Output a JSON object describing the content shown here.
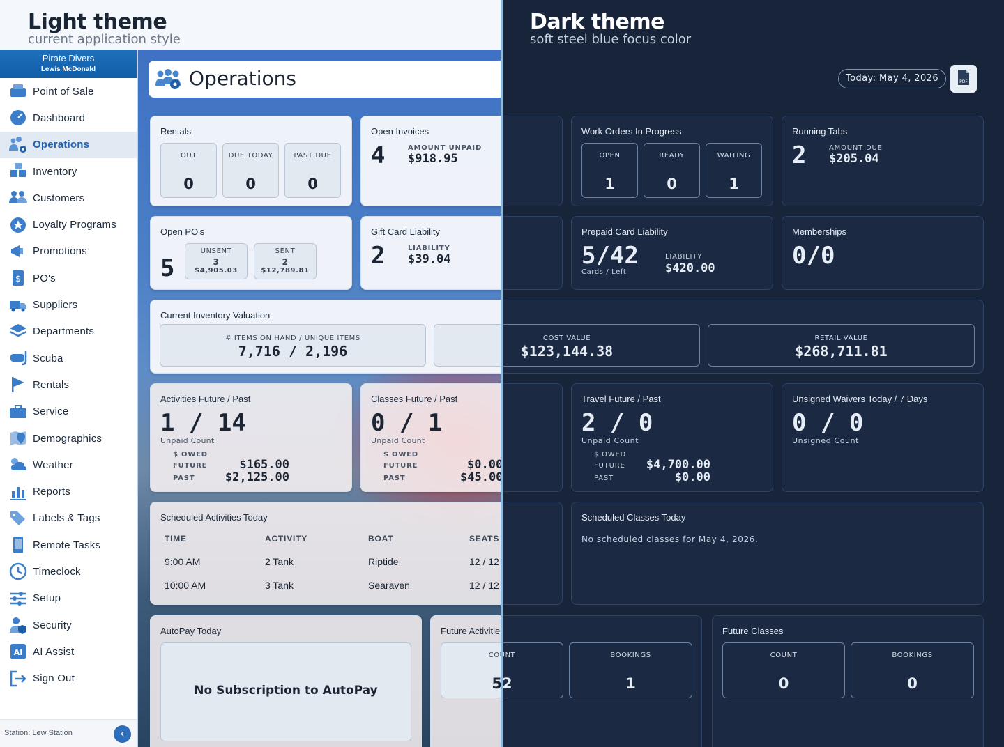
{
  "themes": {
    "light": {
      "title": "Light theme",
      "subtitle": "current application style"
    },
    "dark": {
      "title": "Dark theme",
      "subtitle": "soft steel blue focus color"
    }
  },
  "brand": {
    "company": "Pirate Divers",
    "user": "Lewis McDonald"
  },
  "sidebar": {
    "items": [
      {
        "label": "Point of Sale",
        "icon": "register-icon"
      },
      {
        "label": "Dashboard",
        "icon": "speedometer-icon"
      },
      {
        "label": "Operations",
        "icon": "people-gear-icon",
        "active": true
      },
      {
        "label": "Inventory",
        "icon": "boxes-icon"
      },
      {
        "label": "Customers",
        "icon": "users-icon"
      },
      {
        "label": "Loyalty Programs",
        "icon": "star-badge-icon"
      },
      {
        "label": "Promotions",
        "icon": "megaphone-icon"
      },
      {
        "label": "PO's",
        "icon": "dollar-doc-icon"
      },
      {
        "label": "Suppliers",
        "icon": "truck-icon"
      },
      {
        "label": "Departments",
        "icon": "layers-icon"
      },
      {
        "label": "Scuba",
        "icon": "mask-icon"
      },
      {
        "label": "Rentals",
        "icon": "flag-icon"
      },
      {
        "label": "Service",
        "icon": "toolbox-icon"
      },
      {
        "label": "Demographics",
        "icon": "map-pin-icon"
      },
      {
        "label": "Weather",
        "icon": "cloud-sun-icon"
      },
      {
        "label": "Reports",
        "icon": "bar-chart-icon"
      },
      {
        "label": "Labels & Tags",
        "icon": "tags-icon"
      },
      {
        "label": "Remote Tasks",
        "icon": "phone-icon"
      },
      {
        "label": "Timeclock",
        "icon": "clock-icon"
      },
      {
        "label": "Setup",
        "icon": "sliders-icon"
      },
      {
        "label": "Security",
        "icon": "user-shield-icon"
      },
      {
        "label": "AI Assist",
        "icon": "ai-icon"
      },
      {
        "label": "Sign Out",
        "icon": "sign-out-icon"
      }
    ],
    "station": "Station: Lew Station",
    "collapse_glyph": "‹"
  },
  "header": {
    "title": "Operations",
    "today": "Today: May 4, 2026",
    "pdf_label": "PDF"
  },
  "rentals": {
    "title": "Rentals",
    "boxes": [
      {
        "label": "OUT",
        "value": "0"
      },
      {
        "label": "DUE TODAY",
        "value": "0"
      },
      {
        "label": "PAST DUE",
        "value": "0"
      }
    ]
  },
  "open_invoices": {
    "title": "Open Invoices",
    "count": "4",
    "amount_label": "AMOUNT UNPAID",
    "amount": "$918.95"
  },
  "work_orders": {
    "title": "Work Orders In Progress",
    "boxes": [
      {
        "label": "OPEN",
        "value": "1"
      },
      {
        "label": "READY",
        "value": "0"
      },
      {
        "label": "WAITING",
        "value": "1"
      }
    ]
  },
  "running_tabs": {
    "title": "Running Tabs",
    "count": "2",
    "amount_label": "AMOUNT DUE",
    "amount": "$205.04"
  },
  "open_pos": {
    "title": "Open PO's",
    "count": "5",
    "unsent": {
      "label": "UNSENT",
      "count": "3",
      "amount": "$4,905.03"
    },
    "sent": {
      "label": "SENT",
      "count": "2",
      "amount": "$12,789.81"
    }
  },
  "gift_card": {
    "title": "Gift Card Liability",
    "count": "2",
    "label": "LIABILITY",
    "amount": "$39.04"
  },
  "prepaid_card": {
    "title": "Prepaid Card Liability",
    "ratio": "5/42",
    "sub": "Cards / Left",
    "label": "LIABILITY",
    "amount": "$420.00"
  },
  "memberships": {
    "title": "Memberships",
    "value": "0/0"
  },
  "inventory_valuation": {
    "title": "Current Inventory Valuation",
    "items_label": "# ITEMS ON HAND / UNIQUE ITEMS",
    "items_value": "7,716 / 2,196",
    "cost_label": "COST VALUE",
    "cost_value": "$123,144.38",
    "retail_label": "RETAIL VALUE",
    "retail_value": "$268,711.81"
  },
  "activities": {
    "title": "Activities Future / Past",
    "ratio": "1 / 14",
    "sub": "Unpaid Count",
    "owed_label": "$ OWED",
    "future_label": "FUTURE",
    "future": "$165.00",
    "past_label": "PAST",
    "past": "$2,125.00"
  },
  "classes": {
    "title": "Classes Future / Past",
    "ratio": "0 / 1",
    "sub": "Unpaid Count",
    "owed_label": "$ OWED",
    "future_label": "FUTURE",
    "future": "$0.00",
    "past_label": "PAST",
    "past": "$45.00"
  },
  "travel": {
    "title": "Travel Future / Past",
    "ratio": "2 / 0",
    "sub": "Unpaid Count",
    "owed_label": "$ OWED",
    "future_label": "FUTURE",
    "future": "$4,700.00",
    "past_label": "PAST",
    "past": "$0.00"
  },
  "waivers": {
    "title": "Unsigned Waivers Today / 7 Days",
    "ratio": "0 / 0",
    "sub": "Unsigned Count"
  },
  "scheduled_activities": {
    "title": "Scheduled Activities Today",
    "columns": [
      "TIME",
      "ACTIVITY",
      "BOAT",
      "SEATS"
    ],
    "rows": [
      {
        "time": "9:00 AM",
        "activity": "2 Tank",
        "boat": "Riptide",
        "seats": "12 / 12"
      },
      {
        "time": "10:00 AM",
        "activity": "3 Tank",
        "boat": "Searaven",
        "seats": "12 / 12"
      }
    ]
  },
  "scheduled_classes": {
    "title": "Scheduled Classes Today",
    "empty": "No scheduled classes for May 4, 2026."
  },
  "autopay": {
    "title": "AutoPay Today",
    "empty": "No Subscription to AutoPay"
  },
  "future_activities": {
    "title": "Future Activities",
    "count_label": "COUNT",
    "count": "52",
    "bookings_label": "BOOKINGS",
    "bookings": "1"
  },
  "future_classes": {
    "title": "Future Classes",
    "count_label": "COUNT",
    "count": "0",
    "bookings_label": "BOOKINGS",
    "bookings": "0"
  }
}
